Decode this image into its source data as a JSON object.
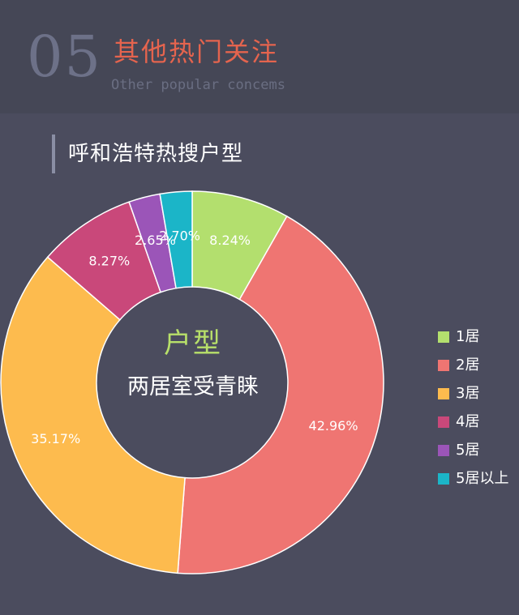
{
  "header": {
    "number": "05",
    "title": "其他热门关注",
    "subtitle_en": "Other popular concems"
  },
  "section": {
    "title": "呼和浩特热搜户型"
  },
  "center": {
    "label": "户型",
    "text": "两居室受青睐"
  },
  "chart_data": {
    "type": "pie",
    "subtype": "donut",
    "slices": [
      {
        "name": "1居",
        "value": 8.24,
        "label": "8.24%",
        "color": "#b3df6e"
      },
      {
        "name": "2居",
        "value": 42.96,
        "label": "42.96%",
        "color": "#ef7572"
      },
      {
        "name": "3居",
        "value": 35.17,
        "label": "35.17%",
        "color": "#fdbb4e"
      },
      {
        "name": "4居",
        "value": 8.27,
        "label": "8.27%",
        "color": "#c9487a"
      },
      {
        "name": "5居",
        "value": 2.65,
        "label": "2.65%",
        "color": "#9b55b8"
      },
      {
        "name": "5居以上",
        "value": 2.7,
        "label": "2.70%",
        "color": "#1bb5c8"
      }
    ],
    "legend_position": "right",
    "start": "top",
    "direction": "clockwise"
  }
}
